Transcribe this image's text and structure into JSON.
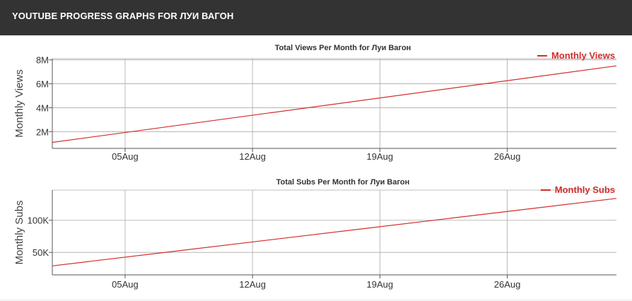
{
  "header": {
    "title": "YOUTUBE PROGRESS GRAPHS FOR ЛУИ ВАГОН"
  },
  "colors": {
    "series": "#d22d2d",
    "header_bg": "#333333",
    "grid": "#aaaaaa"
  },
  "chart_data": [
    {
      "type": "line",
      "title": "Total Views Per Month for Луи Вагон",
      "xlabel": "",
      "ylabel": "Monthly Views",
      "x_tick_labels": [
        "05Aug",
        "12Aug",
        "19Aug",
        "26Aug"
      ],
      "y_tick_labels": [
        "2M",
        "4M",
        "6M",
        "8M"
      ],
      "y_ticks": [
        2000000,
        4000000,
        6000000,
        8000000
      ],
      "ylim": [
        600000,
        8100000
      ],
      "xlim_days": [
        0,
        31
      ],
      "x_tick_days": [
        4,
        11,
        18,
        25
      ],
      "legend_position": "top-right",
      "grid": true,
      "series": [
        {
          "name": "Monthly Views",
          "x_days": [
            0,
            31
          ],
          "values": [
            1100000,
            7500000
          ]
        }
      ]
    },
    {
      "type": "line",
      "title": "Total Subs Per Month for Луи Вагон",
      "xlabel": "",
      "ylabel": "Monthly Subs",
      "x_tick_labels": [
        "05Aug",
        "12Aug",
        "19Aug",
        "26Aug"
      ],
      "y_tick_labels": [
        "50K",
        "100K"
      ],
      "y_ticks": [
        50000,
        100000
      ],
      "ylim": [
        15000,
        147000
      ],
      "xlim_days": [
        0,
        31
      ],
      "x_tick_days": [
        4,
        11,
        18,
        25
      ],
      "legend_position": "top-right",
      "grid": true,
      "series": [
        {
          "name": "Monthly Subs",
          "x_days": [
            0,
            31
          ],
          "values": [
            29000,
            134000
          ]
        }
      ]
    }
  ]
}
